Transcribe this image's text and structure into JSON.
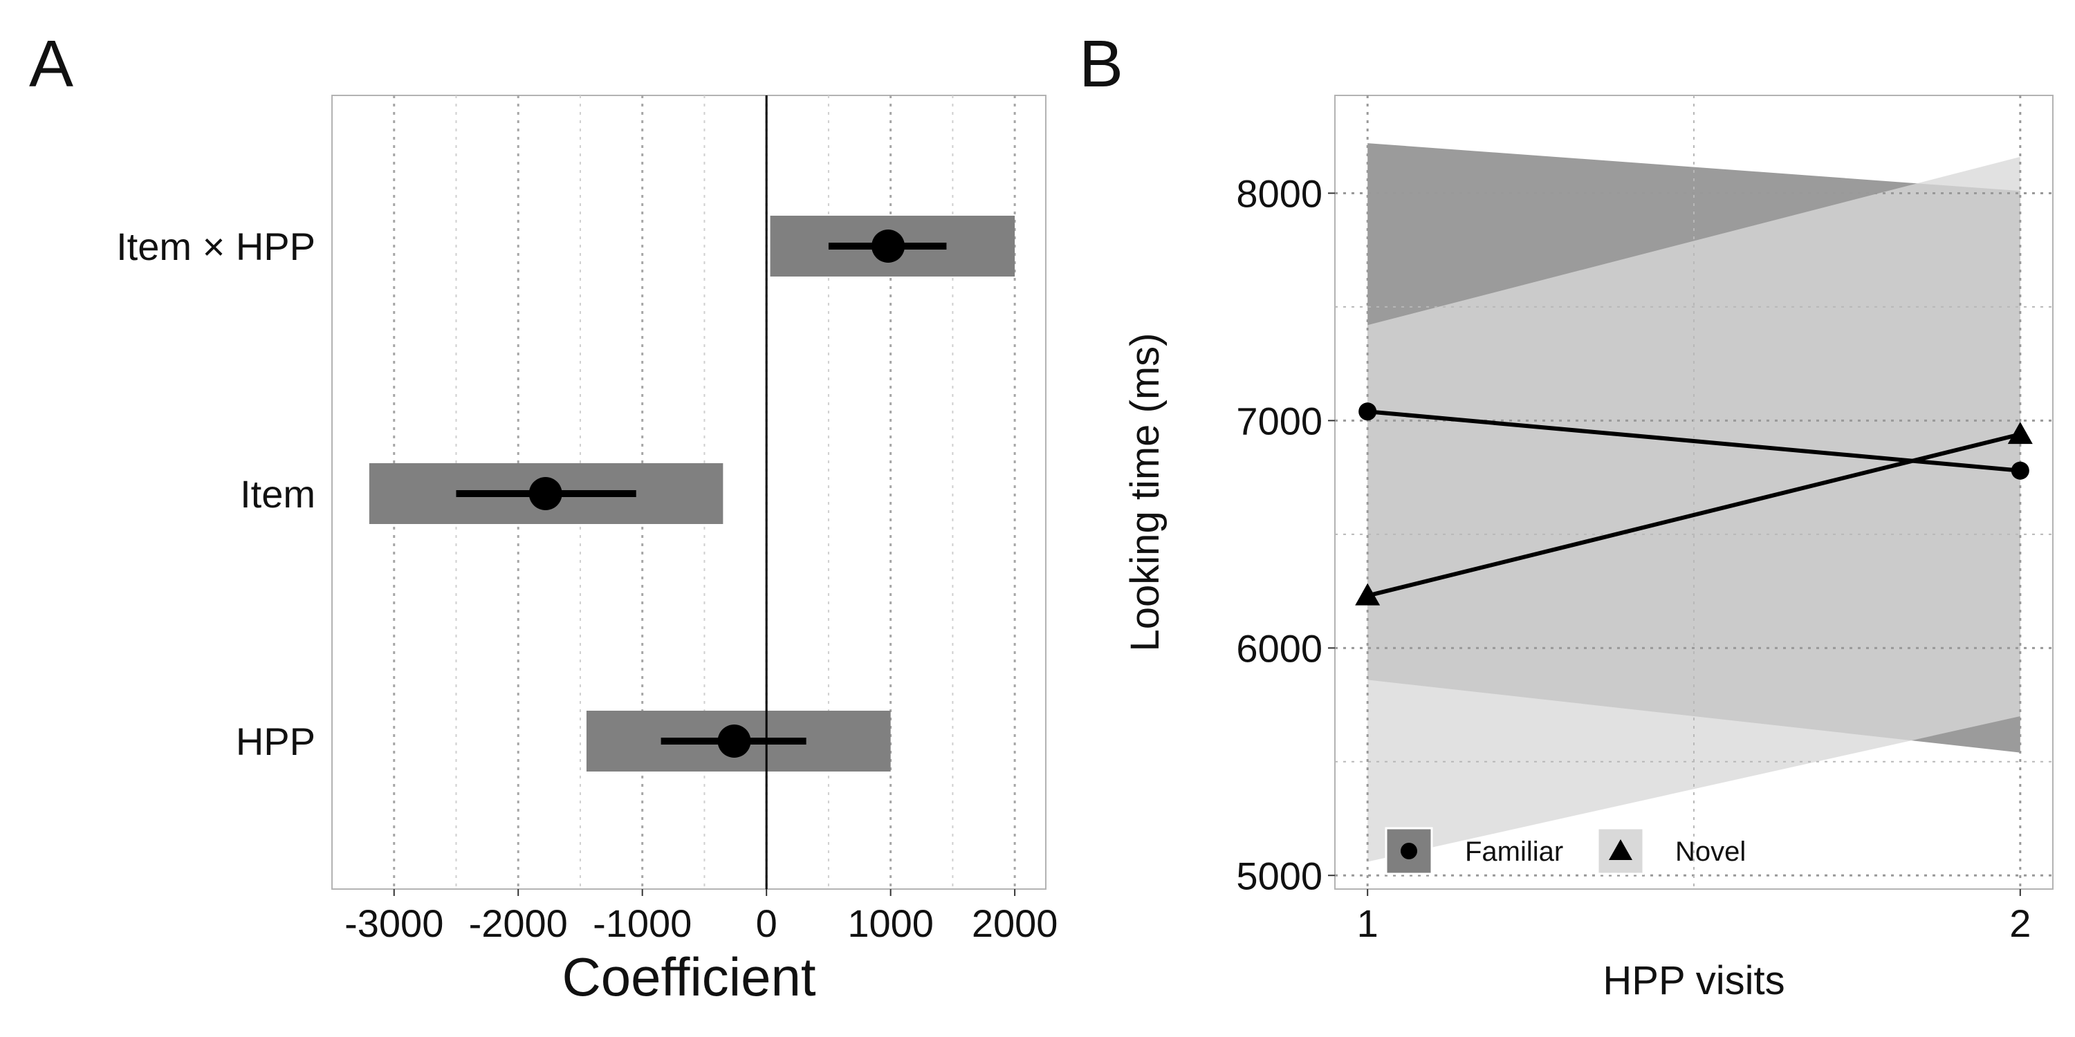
{
  "chart_data": [
    {
      "type": "forest",
      "panel_label": "A",
      "xlabel": "Coefficient",
      "ylabel": "",
      "xlim": [
        -3500,
        2250
      ],
      "xticks": [
        -3000,
        -2000,
        -1000,
        0,
        1000,
        2000
      ],
      "xtick_labels": [
        "-3000",
        "-2000",
        "-1000",
        "0",
        "1000",
        "2000"
      ],
      "reference_line": 0,
      "grid": "vertical dotted",
      "categories": [
        "Item × HPP",
        "Item",
        "HPP"
      ],
      "series": [
        {
          "estimate": [
            980,
            -1780,
            -260
          ],
          "inner_interval": [
            [
              500,
              1450
            ],
            [
              -2500,
              -1050
            ],
            [
              -850,
              320
            ]
          ],
          "outer_interval": [
            [
              30,
              2000
            ],
            [
              -3200,
              -350
            ],
            [
              -1450,
              1000
            ]
          ]
        }
      ],
      "colors": {
        "band": "#808080",
        "point": "#000000"
      }
    },
    {
      "type": "line",
      "panel_label": "B",
      "xlabel": "HPP visits",
      "ylabel": "Looking time (ms)",
      "x": [
        1,
        2
      ],
      "xlim": [
        0.95,
        2.05
      ],
      "xticks": [
        1,
        2
      ],
      "xtick_labels": [
        "1",
        "2"
      ],
      "ylim": [
        4940,
        8430
      ],
      "yticks": [
        5000,
        6000,
        7000,
        8000
      ],
      "ytick_labels": [
        "5000",
        "6000",
        "7000",
        "8000"
      ],
      "grid": "dotted",
      "legend_position": "bottom-left inside",
      "series": [
        {
          "name": "Familiar",
          "marker": "circle",
          "values": [
            7040,
            6780
          ],
          "ribbon_lower": [
            5860,
            5540
          ],
          "ribbon_upper": [
            8220,
            8010
          ],
          "ribbon_color": "#7f7f7f"
        },
        {
          "name": "Novel",
          "marker": "triangle",
          "values": [
            6230,
            6940
          ],
          "ribbon_lower": [
            5060,
            5700
          ],
          "ribbon_upper": [
            7420,
            8160
          ],
          "ribbon_color": "#d9d9d9"
        }
      ]
    }
  ]
}
